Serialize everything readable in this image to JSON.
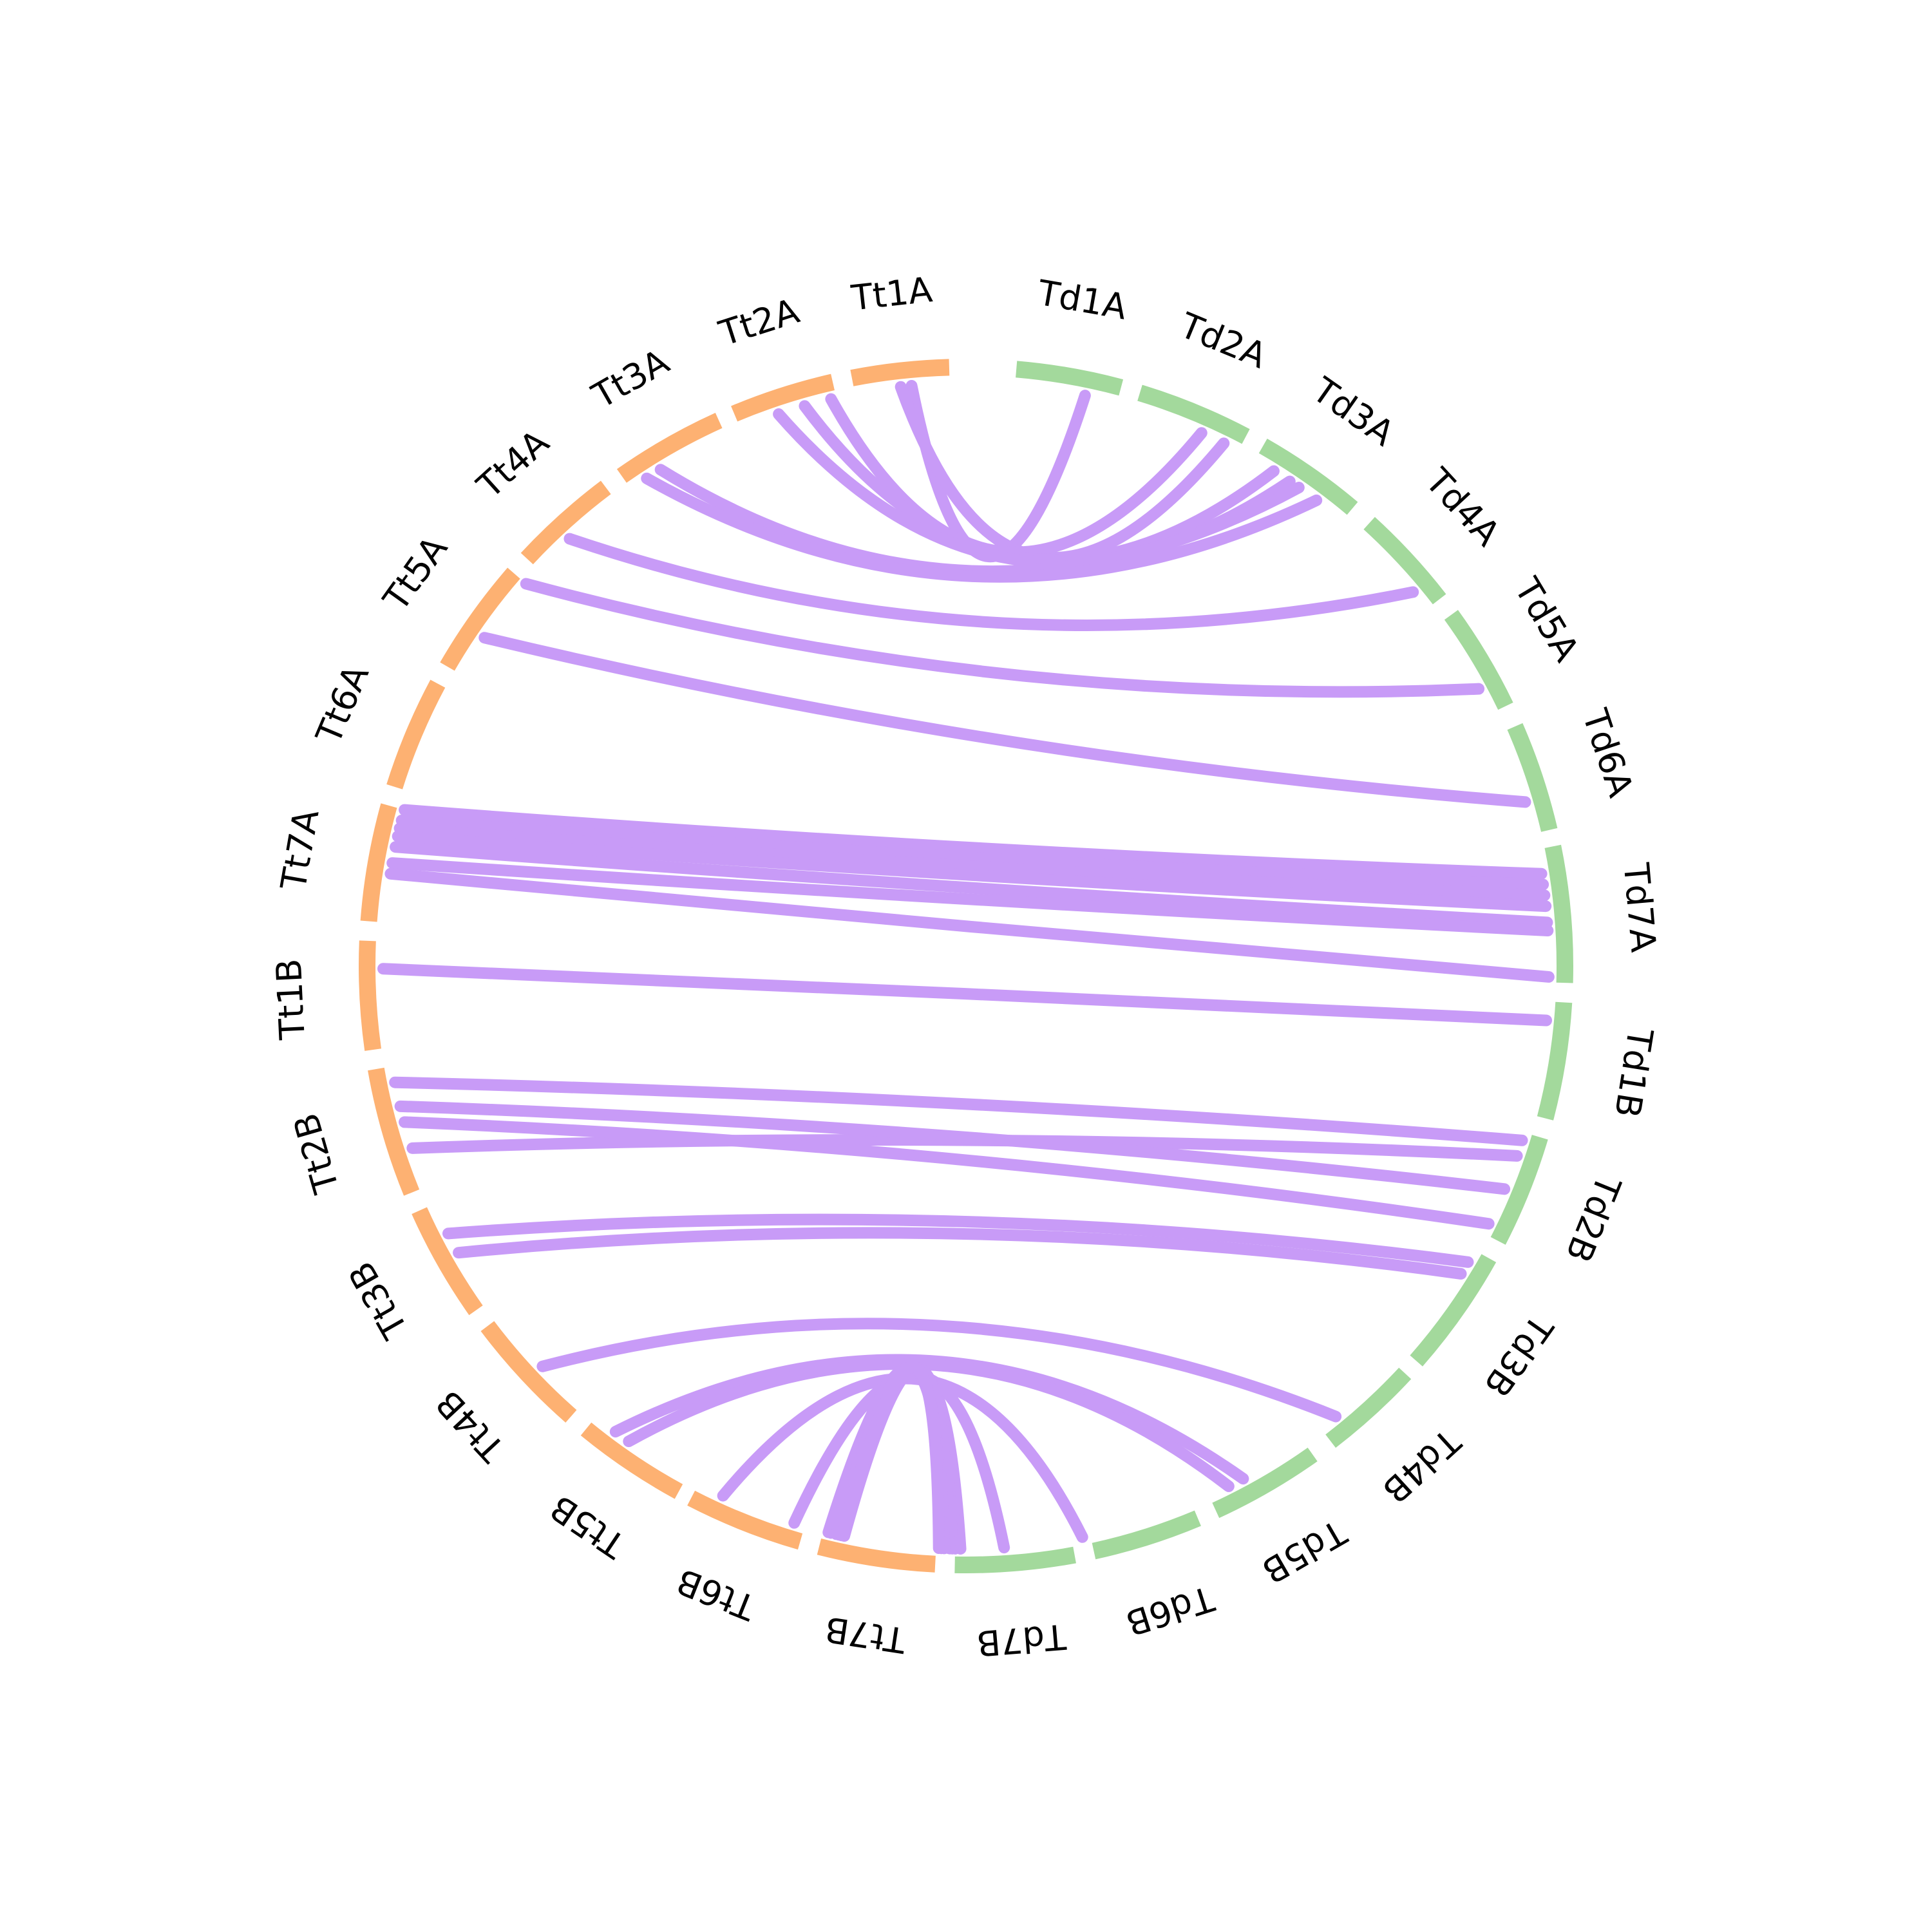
{
  "chart_data": {
    "type": "chord",
    "colors": {
      "Td": "#a3d99c",
      "Tt": "#fdb172",
      "link": "#c89bf7"
    },
    "chromosomes": [
      {
        "name": "Td1A",
        "genome": "Td",
        "start": 9.0,
        "end": 28.0
      },
      {
        "name": "Td2A",
        "genome": "Td",
        "start": 31.5,
        "end": 52.0
      },
      {
        "name": "Td3A",
        "genome": "Td",
        "start": 55.5,
        "end": 75.0
      },
      {
        "name": "Td4A",
        "genome": "Td",
        "start": 79.0,
        "end": 97.5
      },
      {
        "name": "Td5A",
        "genome": "Td",
        "start": 101.0,
        "end": 120.0
      },
      {
        "name": "Td6A",
        "genome": "Td",
        "start": 124.0,
        "end": 143.5
      },
      {
        "name": "Td7A",
        "genome": "Td",
        "start": 146.5,
        "end": 171.0
      },
      {
        "name": "Td1B",
        "genome": "Td",
        "start": 174.5,
        "end": 195.5
      },
      {
        "name": "Td2B",
        "genome": "Td",
        "start": 199.0,
        "end": 219.0
      },
      {
        "name": "Td3B",
        "genome": "Td",
        "start": 222.5,
        "end": 245.0
      },
      {
        "name": "Td4B",
        "genome": "Td",
        "start": 248.0,
        "end": 266.0
      },
      {
        "name": "Td5B",
        "genome": "Td",
        "start": 270.0,
        "end": 290.0
      },
      {
        "name": "Td6B",
        "genome": "Td",
        "start": 293.5,
        "end": 313.0
      },
      {
        "name": "Td7B",
        "genome": "Td",
        "start": 316.5,
        "end": 338.0
      },
      {
        "name": "Tt7B",
        "genome": "Tt",
        "start": 341.5,
        "end": 362.5
      },
      {
        "name": "Tt6B",
        "genome": "Tt",
        "start": 366.0,
        "end": 387.0
      },
      {
        "name": "Tt5B",
        "genome": "Tt",
        "start": 389.5,
        "end": 409.5
      },
      {
        "name": "Tt4B",
        "genome": "Tt",
        "start": 413.0,
        "end": 435.0
      },
      {
        "name": "Tt3B",
        "genome": "Tt",
        "start": 438.5,
        "end": 459.0
      },
      {
        "name": "Tt2B",
        "genome": "Tt",
        "start": 462.5,
        "end": 485.5
      },
      {
        "name": "Tt1B",
        "genome": "Tt",
        "start": 489.0,
        "end": 508.5
      },
      {
        "name": "Tt7A",
        "genome": "Tt",
        "start": 512.0,
        "end": 533.0
      },
      {
        "name": "Tt6A",
        "genome": "Tt",
        "start": 536.5,
        "end": 556.5
      },
      {
        "name": "Tt5A",
        "genome": "Tt",
        "start": 560.0,
        "end": 580.5
      },
      {
        "name": "Tt4A",
        "genome": "Tt",
        "start": 584.0,
        "end": 603.0
      },
      {
        "name": "Tt3A",
        "genome": "Tt",
        "start": 606.5,
        "end": 626.5
      },
      {
        "name": "Tt2A",
        "genome": "Tt",
        "start": 629.5,
        "end": 648.0
      },
      {
        "name": "Tt1A",
        "genome": "Tt",
        "start": 651.5,
        "end": 669.0
      }
    ],
    "links": [
      [
        22.0,
        662.0
      ],
      [
        49.0,
        660.0
      ],
      [
        44.5,
        647.0
      ],
      [
        59.5,
        642.0
      ],
      [
        63.0,
        637.0
      ],
      [
        65.0,
        613.0
      ],
      [
        69.0,
        610.0
      ],
      [
        93.5,
        592.0
      ],
      [
        115.0,
        580.5
      ],
      [
        137.5,
        568.0
      ],
      [
        151.0,
        533.0
      ],
      [
        153.0,
        531.0
      ],
      [
        155.0,
        529.5
      ],
      [
        157.0,
        528.0
      ],
      [
        160.0,
        526.0
      ],
      [
        161.5,
        523.0
      ],
      [
        170.0,
        521.0
      ],
      [
        178.0,
        503.5
      ],
      [
        200.5,
        482.5
      ],
      [
        203.5,
        470.0
      ],
      [
        210.0,
        478.0
      ],
      [
        217.0,
        475.0
      ],
      [
        225.0,
        453.0
      ],
      [
        227.5,
        449.0
      ],
      [
        262.5,
        423.0
      ],
      [
        283.0,
        405.0
      ],
      [
        286.0,
        402.0
      ],
      [
        314.5,
        382.0
      ],
      [
        329.0,
        368.0
      ],
      [
        337.0,
        361.0
      ],
      [
        338.0,
        359.5
      ],
      [
        338.5,
        359.0
      ],
      [
        339.0,
        358.5
      ],
      [
        340.0,
        361.5
      ],
      [
        340.5,
        360.0
      ],
      [
        341.0,
        359.0
      ]
    ]
  }
}
